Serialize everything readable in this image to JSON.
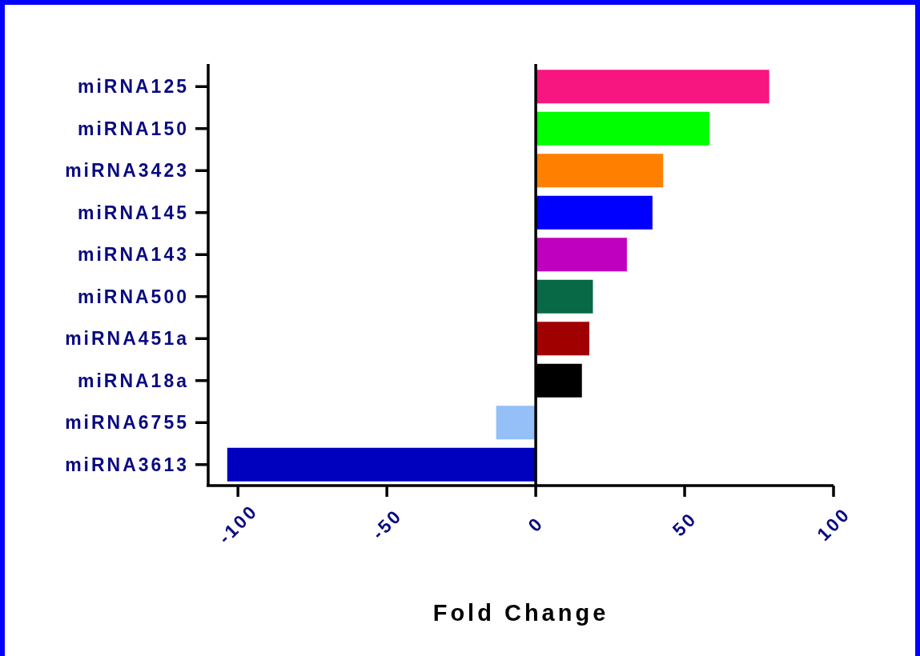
{
  "chart_data": {
    "type": "bar",
    "orientation": "horizontal",
    "xlabel": "Fold Change",
    "categories": [
      "miRNA125",
      "miRNA150",
      "miRNA3423",
      "miRNA145",
      "miRNA143",
      "miRNA500",
      "miRNA451a",
      "miRNA18a",
      "miRNA6755",
      "miRNA3613"
    ],
    "values": [
      78.4,
      58.3,
      42.8,
      39.2,
      30.6,
      19.2,
      18,
      15.5,
      -13.3,
      -103.6
    ],
    "colors": [
      "#f7157f",
      "#00ff00",
      "#ff8000",
      "#0000ff",
      "#bf00bf",
      "#076945",
      "#a00000",
      "#000000",
      "#94c0f7",
      "#0000bf"
    ],
    "xlim": [
      -110,
      100
    ],
    "xticks": [
      -100,
      -50,
      0,
      50,
      100
    ],
    "ref_lines": [
      {
        "axis": "x",
        "value": 0,
        "color": "#000000"
      }
    ]
  }
}
